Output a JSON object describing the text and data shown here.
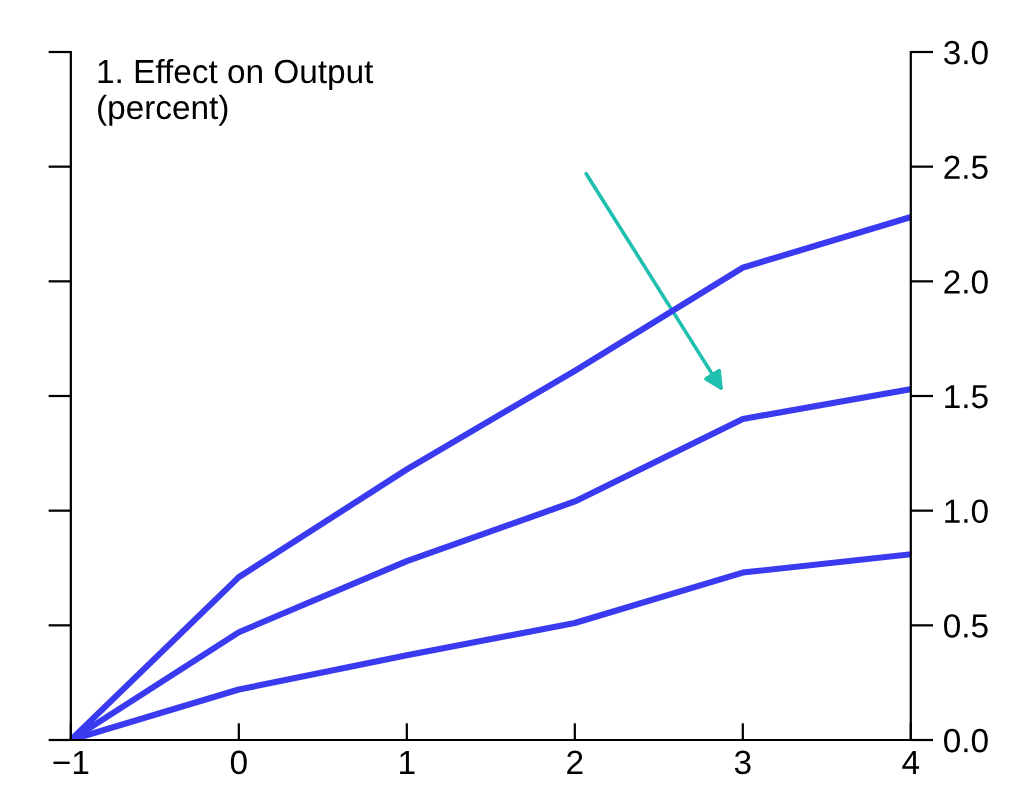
{
  "chart_data": {
    "type": "line",
    "title": "1. Effect on Output\n(percent)",
    "x": [
      -1,
      0,
      1,
      2,
      3,
      4
    ],
    "series": [
      {
        "color": "#3a3af0",
        "values": [
          0,
          0.71,
          1.18,
          1.61,
          2.06,
          2.28
        ]
      },
      {
        "color": "#3a3af0",
        "values": [
          0,
          0.47,
          0.78,
          1.04,
          1.4,
          1.53
        ]
      },
      {
        "color": "#3a3af0",
        "values": [
          0,
          0.22,
          0.37,
          0.51,
          0.73,
          0.81
        ]
      }
    ],
    "xlim": [
      -1,
      4
    ],
    "xticks": [
      {
        "value": -1,
        "label": "−1"
      },
      0,
      1,
      2,
      3,
      4
    ],
    "ylim": [
      0,
      3
    ],
    "yticks": [
      {
        "value": 0,
        "label": "0.0"
      },
      {
        "value": 0.5,
        "label": "0.5"
      },
      {
        "value": 1,
        "label": "1.0"
      },
      {
        "value": 1.5,
        "label": "1.5"
      },
      {
        "value": 2,
        "label": "2.0"
      },
      {
        "value": 2.5,
        "label": "2.5"
      },
      {
        "value": 3,
        "label": "3.0"
      }
    ],
    "grid": false,
    "legend": false,
    "marker": "none",
    "line_style": "solid"
  }
}
